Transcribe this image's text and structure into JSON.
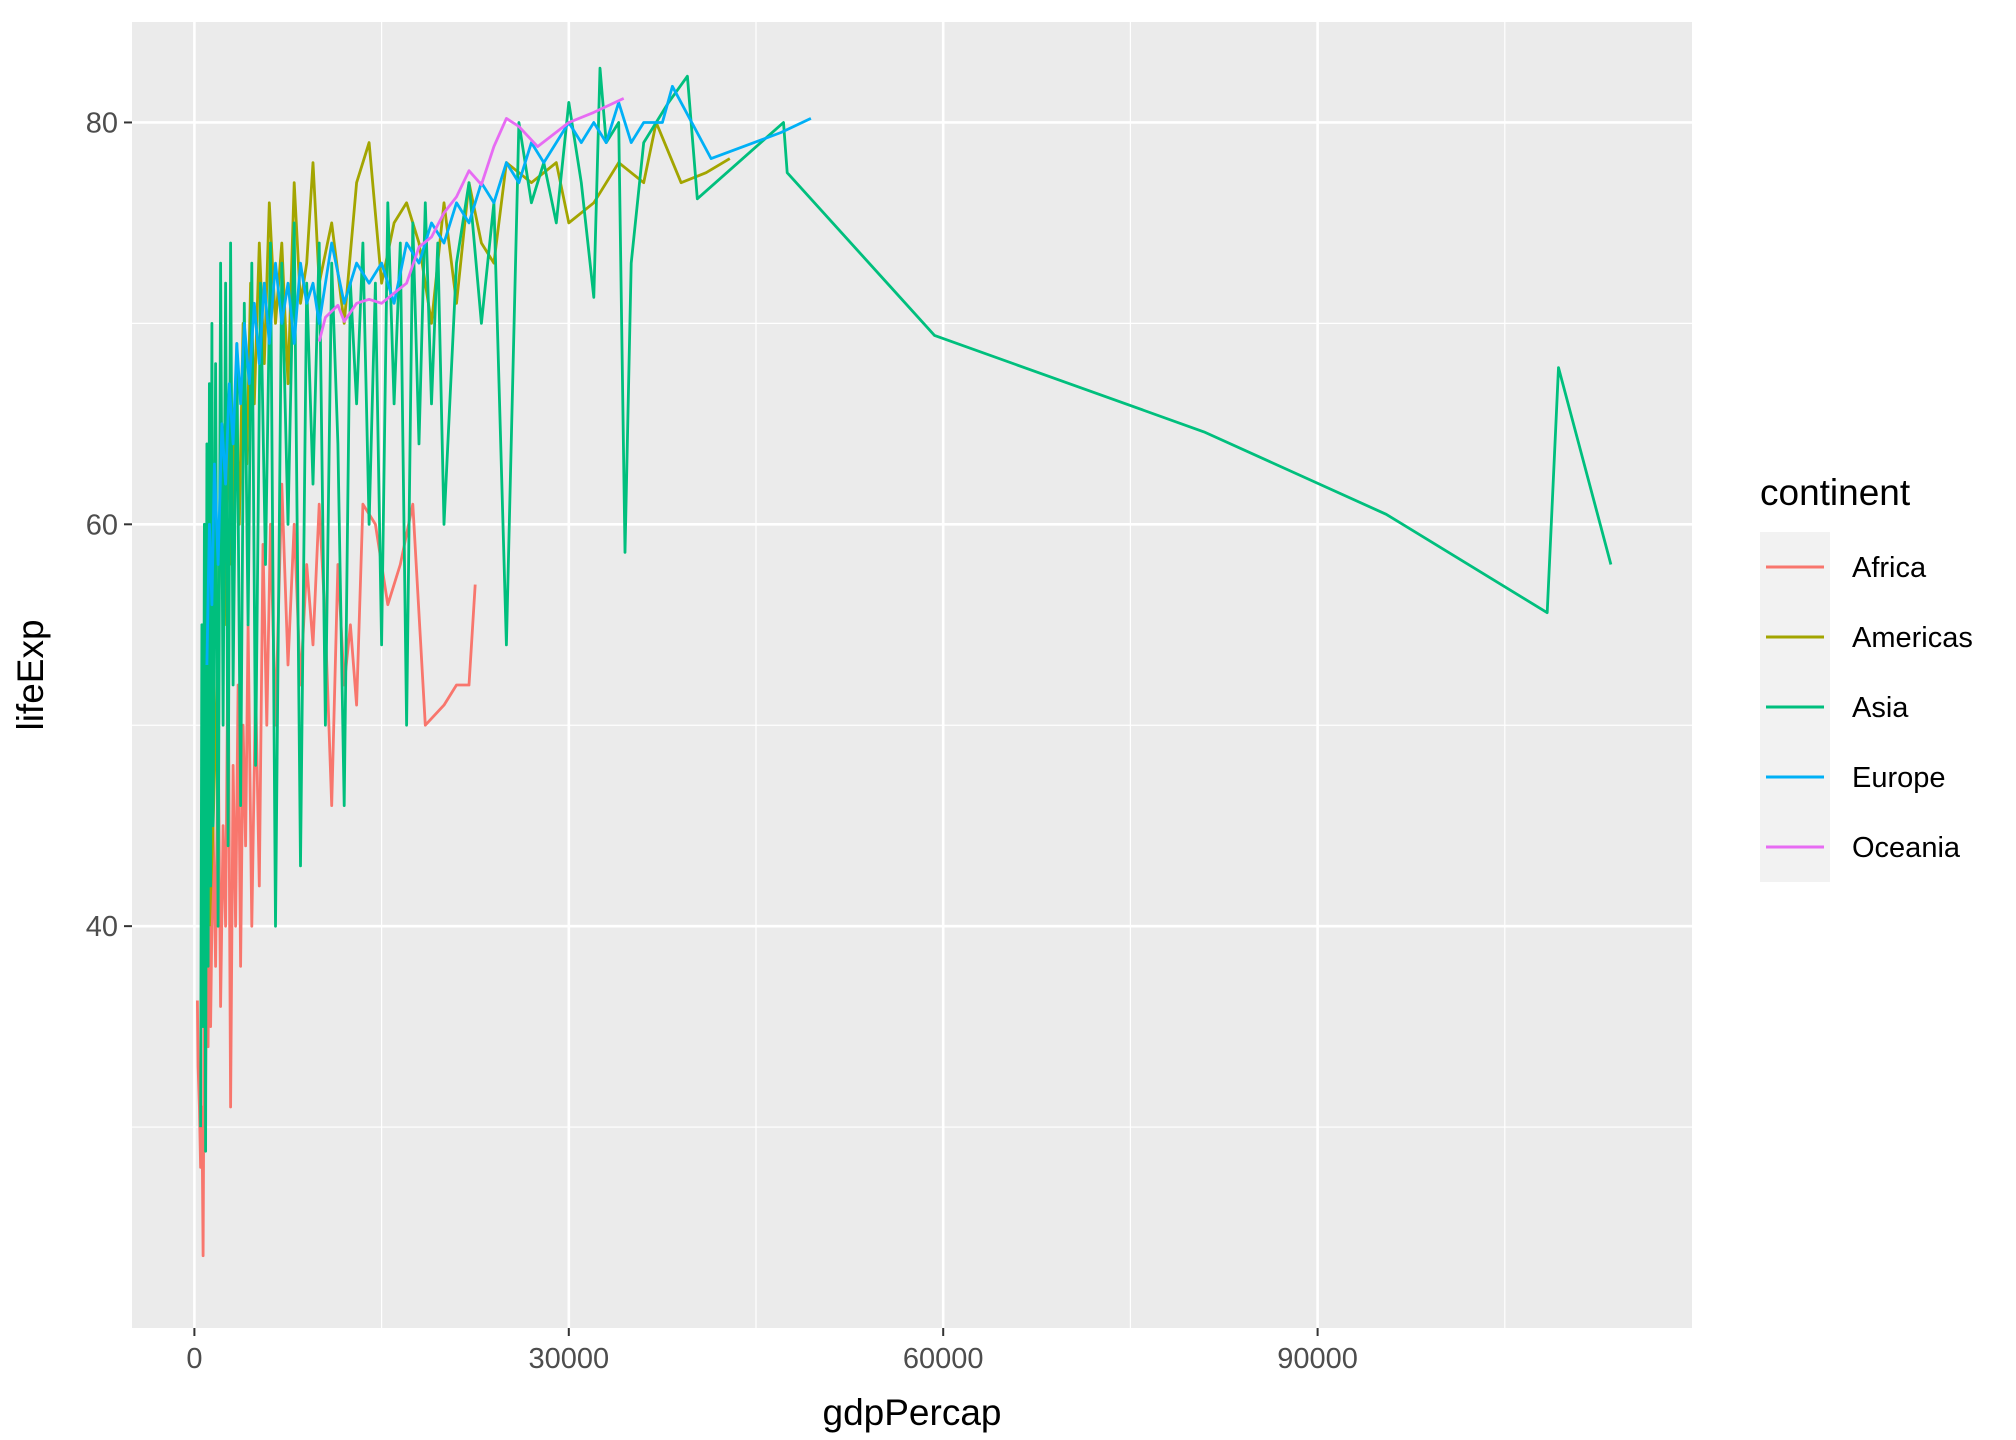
{
  "chart_data": {
    "type": "line",
    "xlabel": "gdpPercap",
    "ylabel": "lifeExp",
    "xlim": [
      -5000,
      120000
    ],
    "ylim": [
      20,
      85
    ],
    "x_ticks": [
      0,
      30000,
      60000,
      90000
    ],
    "x_tick_labels": [
      "0",
      "30000",
      "60000",
      "90000"
    ],
    "y_ticks": [
      40,
      60,
      80
    ],
    "y_tick_labels": [
      "40",
      "60",
      "80"
    ],
    "grid": true,
    "panel_background": "#ebebeb",
    "legend": {
      "title": "continent",
      "placement": "right"
    },
    "series": [
      {
        "name": "Africa",
        "color": "#F8766D",
        "points": [
          [
            241,
            36.3
          ],
          [
            300,
            33
          ],
          [
            400,
            31
          ],
          [
            500,
            28
          ],
          [
            600,
            31
          ],
          [
            700,
            23.6
          ],
          [
            800,
            38
          ],
          [
            900,
            32
          ],
          [
            1000,
            41
          ],
          [
            1100,
            34
          ],
          [
            1200,
            45
          ],
          [
            1300,
            35
          ],
          [
            1500,
            45
          ],
          [
            1700,
            38
          ],
          [
            1900,
            50
          ],
          [
            2100,
            36
          ],
          [
            2300,
            45
          ],
          [
            2500,
            40
          ],
          [
            2700,
            55
          ],
          [
            2900,
            31
          ],
          [
            3100,
            48
          ],
          [
            3300,
            40
          ],
          [
            3500,
            52
          ],
          [
            3700,
            38
          ],
          [
            3900,
            50
          ],
          [
            4100,
            44
          ],
          [
            4300,
            55
          ],
          [
            4600,
            40
          ],
          [
            4900,
            52
          ],
          [
            5200,
            42
          ],
          [
            5500,
            59
          ],
          [
            5800,
            50
          ],
          [
            6100,
            60
          ],
          [
            6500,
            50
          ],
          [
            7000,
            62
          ],
          [
            7500,
            53
          ],
          [
            8000,
            60
          ],
          [
            8500,
            52
          ],
          [
            9000,
            58
          ],
          [
            9500,
            54
          ],
          [
            10000,
            61
          ],
          [
            10500,
            55
          ],
          [
            11000,
            46
          ],
          [
            11500,
            58
          ],
          [
            12000,
            52
          ],
          [
            12500,
            55
          ],
          [
            13000,
            51
          ],
          [
            13500,
            61
          ],
          [
            14500,
            60
          ],
          [
            15500,
            56
          ],
          [
            16500,
            58
          ],
          [
            17500,
            61
          ],
          [
            18500,
            50
          ],
          [
            20000,
            51
          ],
          [
            21000,
            52
          ],
          [
            22000,
            52
          ],
          [
            22500,
            57
          ]
        ]
      },
      {
        "name": "Americas",
        "color": "#A3A500",
        "points": [
          [
            1200,
            40
          ],
          [
            1500,
            45
          ],
          [
            1800,
            52
          ],
          [
            2100,
            60
          ],
          [
            2400,
            55
          ],
          [
            2700,
            64
          ],
          [
            3000,
            58
          ],
          [
            3300,
            67
          ],
          [
            3600,
            60
          ],
          [
            3900,
            70
          ],
          [
            4200,
            63
          ],
          [
            4500,
            72
          ],
          [
            4800,
            66
          ],
          [
            5200,
            74
          ],
          [
            5600,
            68
          ],
          [
            6000,
            76
          ],
          [
            6500,
            70
          ],
          [
            7000,
            74
          ],
          [
            7500,
            67
          ],
          [
            8000,
            77
          ],
          [
            8500,
            71
          ],
          [
            9000,
            73
          ],
          [
            9500,
            78
          ],
          [
            10000,
            72
          ],
          [
            11000,
            75
          ],
          [
            12000,
            70
          ],
          [
            13000,
            77
          ],
          [
            14000,
            79
          ],
          [
            15000,
            72
          ],
          [
            16000,
            75
          ],
          [
            17000,
            76
          ],
          [
            18000,
            74
          ],
          [
            19000,
            70
          ],
          [
            20000,
            76
          ],
          [
            21000,
            71
          ],
          [
            22000,
            77
          ],
          [
            23000,
            74
          ],
          [
            24000,
            73
          ],
          [
            25000,
            78
          ],
          [
            27000,
            77
          ],
          [
            29000,
            78
          ],
          [
            30000,
            75
          ],
          [
            32000,
            76
          ],
          [
            34000,
            78
          ],
          [
            36000,
            77
          ],
          [
            37000,
            80
          ],
          [
            39000,
            77
          ],
          [
            41000,
            77.5
          ],
          [
            42900,
            78.2
          ]
        ]
      },
      {
        "name": "Asia",
        "color": "#00BF7D",
        "points": [
          [
            500,
            30
          ],
          [
            600,
            55
          ],
          [
            700,
            35
          ],
          [
            800,
            60
          ],
          [
            900,
            28.8
          ],
          [
            1000,
            64
          ],
          [
            1100,
            38
          ],
          [
            1200,
            67
          ],
          [
            1300,
            42
          ],
          [
            1400,
            70
          ],
          [
            1500,
            45
          ],
          [
            1700,
            68
          ],
          [
            1900,
            40
          ],
          [
            2100,
            73
          ],
          [
            2300,
            50
          ],
          [
            2500,
            72
          ],
          [
            2700,
            44
          ],
          [
            2900,
            74
          ],
          [
            3100,
            52
          ],
          [
            3400,
            69
          ],
          [
            3700,
            46
          ],
          [
            4000,
            71
          ],
          [
            4300,
            55
          ],
          [
            4600,
            73
          ],
          [
            4900,
            48
          ],
          [
            5300,
            72
          ],
          [
            5700,
            58
          ],
          [
            6100,
            74
          ],
          [
            6500,
            40
          ],
          [
            7000,
            73
          ],
          [
            7500,
            60
          ],
          [
            8000,
            75
          ],
          [
            8500,
            43
          ],
          [
            9000,
            72
          ],
          [
            9500,
            62
          ],
          [
            10000,
            74
          ],
          [
            10500,
            50
          ],
          [
            11000,
            73
          ],
          [
            11500,
            64
          ],
          [
            12000,
            46
          ],
          [
            12500,
            72
          ],
          [
            13000,
            66
          ],
          [
            13500,
            74
          ],
          [
            14000,
            60
          ],
          [
            14500,
            72
          ],
          [
            15000,
            54
          ],
          [
            15500,
            76
          ],
          [
            16000,
            66
          ],
          [
            16500,
            74
          ],
          [
            17000,
            50
          ],
          [
            17500,
            75
          ],
          [
            18000,
            64
          ],
          [
            18500,
            76
          ],
          [
            19000,
            66
          ],
          [
            19500,
            74
          ],
          [
            20000,
            60
          ],
          [
            21000,
            73
          ],
          [
            22000,
            77
          ],
          [
            23000,
            70
          ],
          [
            24000,
            76
          ],
          [
            25000,
            54
          ],
          [
            26000,
            80
          ],
          [
            27000,
            76
          ],
          [
            28000,
            78
          ],
          [
            29000,
            75
          ],
          [
            30000,
            81
          ],
          [
            31000,
            77
          ],
          [
            32000,
            71.3
          ],
          [
            32500,
            82.7
          ],
          [
            33000,
            79
          ],
          [
            34000,
            80
          ],
          [
            34500,
            58.6
          ],
          [
            35000,
            73
          ],
          [
            36000,
            79
          ],
          [
            38000,
            81
          ],
          [
            39500,
            82.3
          ],
          [
            40300,
            76.2
          ],
          [
            47200,
            80
          ],
          [
            47500,
            77.5
          ],
          [
            59300,
            69.4
          ],
          [
            80900,
            64.6
          ],
          [
            95500,
            60.5
          ],
          [
            108400,
            55.6
          ],
          [
            109300,
            67.8
          ],
          [
            113500,
            58
          ]
        ]
      },
      {
        "name": "Europe",
        "color": "#00B0F6",
        "points": [
          [
            1000,
            53
          ],
          [
            1200,
            60
          ],
          [
            1400,
            56
          ],
          [
            1600,
            63
          ],
          [
            1900,
            58
          ],
          [
            2200,
            65
          ],
          [
            2500,
            62
          ],
          [
            2800,
            67
          ],
          [
            3100,
            64
          ],
          [
            3400,
            69
          ],
          [
            3700,
            66
          ],
          [
            4000,
            70
          ],
          [
            4400,
            67
          ],
          [
            4800,
            71
          ],
          [
            5200,
            68
          ],
          [
            5600,
            72
          ],
          [
            6000,
            69
          ],
          [
            6500,
            73
          ],
          [
            7000,
            70
          ],
          [
            7500,
            72
          ],
          [
            8000,
            69
          ],
          [
            8500,
            73
          ],
          [
            9000,
            71
          ],
          [
            9500,
            72
          ],
          [
            10000,
            70
          ],
          [
            11000,
            74
          ],
          [
            12000,
            71
          ],
          [
            13000,
            73
          ],
          [
            14000,
            72
          ],
          [
            15000,
            73
          ],
          [
            16000,
            71
          ],
          [
            17000,
            74
          ],
          [
            18000,
            73
          ],
          [
            19000,
            75
          ],
          [
            20000,
            74
          ],
          [
            21000,
            76
          ],
          [
            22000,
            75
          ],
          [
            23000,
            77
          ],
          [
            24000,
            76
          ],
          [
            25000,
            78
          ],
          [
            26000,
            77
          ],
          [
            27000,
            79
          ],
          [
            28000,
            78
          ],
          [
            29000,
            79
          ],
          [
            30000,
            80
          ],
          [
            31000,
            79
          ],
          [
            32000,
            80
          ],
          [
            33000,
            79
          ],
          [
            34000,
            81
          ],
          [
            35000,
            79
          ],
          [
            36000,
            80
          ],
          [
            37500,
            80
          ],
          [
            38300,
            81.8
          ],
          [
            41400,
            78.2
          ],
          [
            47000,
            79.5
          ],
          [
            49400,
            80.2
          ]
        ]
      },
      {
        "name": "Oceania",
        "color": "#E76BF3",
        "points": [
          [
            10000,
            69.1
          ],
          [
            10500,
            70.3
          ],
          [
            11500,
            70.9
          ],
          [
            12000,
            70.1
          ],
          [
            13000,
            71.0
          ],
          [
            14000,
            71.2
          ],
          [
            15000,
            71.0
          ],
          [
            16000,
            71.5
          ],
          [
            17000,
            72.0
          ],
          [
            18000,
            73.8
          ],
          [
            19000,
            74.3
          ],
          [
            20000,
            75.5
          ],
          [
            21000,
            76.3
          ],
          [
            22000,
            77.6
          ],
          [
            23000,
            76.9
          ],
          [
            24000,
            78.8
          ],
          [
            25000,
            80.2
          ],
          [
            26000,
            79.8
          ],
          [
            27500,
            78.8
          ],
          [
            30000,
            80.0
          ],
          [
            32000,
            80.5
          ],
          [
            34400,
            81.2
          ]
        ]
      }
    ]
  }
}
